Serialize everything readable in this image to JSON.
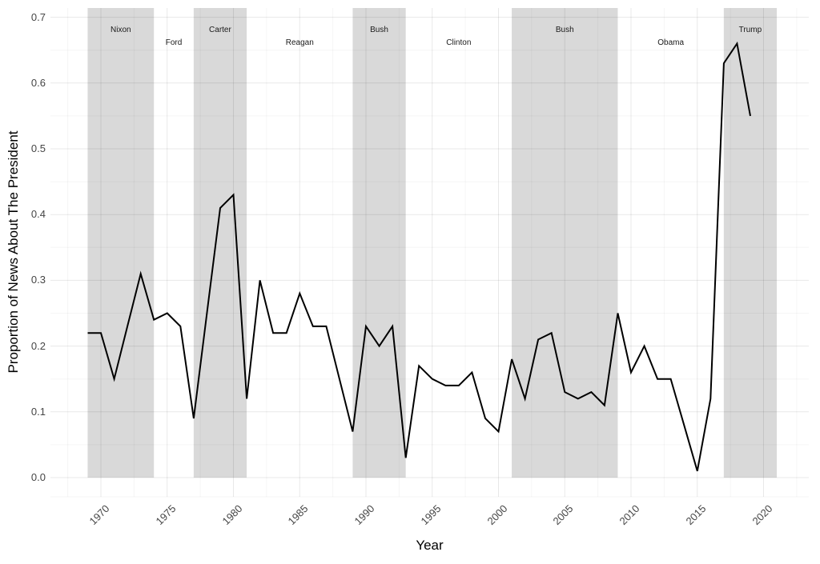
{
  "figure": {
    "xlabel": "Year",
    "ylabel": "Proportion of News About The President"
  },
  "chart_data": {
    "type": "line",
    "title": "",
    "xlabel": "Year",
    "ylabel": "Proportion of News About The President",
    "x": [
      1969,
      1970,
      1971,
      1972,
      1973,
      1974,
      1975,
      1976,
      1977,
      1978,
      1979,
      1980,
      1981,
      1982,
      1983,
      1984,
      1985,
      1986,
      1987,
      1988,
      1989,
      1990,
      1991,
      1992,
      1993,
      1994,
      1995,
      1996,
      1997,
      1998,
      1999,
      2000,
      2001,
      2002,
      2003,
      2004,
      2005,
      2006,
      2007,
      2008,
      2009,
      2010,
      2011,
      2012,
      2013,
      2014,
      2015,
      2016,
      2017,
      2018,
      2019
    ],
    "values": [
      0.22,
      0.22,
      0.15,
      0.23,
      0.31,
      0.24,
      0.25,
      0.23,
      0.09,
      0.25,
      0.41,
      0.43,
      0.12,
      0.3,
      0.22,
      0.22,
      0.28,
      0.23,
      0.23,
      0.15,
      0.07,
      0.23,
      0.2,
      0.23,
      0.03,
      0.17,
      0.15,
      0.14,
      0.14,
      0.16,
      0.09,
      0.07,
      0.18,
      0.12,
      0.21,
      0.22,
      0.13,
      0.12,
      0.13,
      0.11,
      0.25,
      0.16,
      0.2,
      0.15,
      0.15,
      0.08,
      0.01,
      0.12,
      0.63,
      0.66,
      0.55
    ],
    "x_ticks": [
      1970,
      1975,
      1980,
      1985,
      1990,
      1995,
      2000,
      2005,
      2010,
      2015,
      2020
    ],
    "y_ticks": [
      0.0,
      0.1,
      0.2,
      0.3,
      0.4,
      0.5,
      0.6,
      0.7
    ],
    "ylim": [
      0.0,
      0.7
    ],
    "grid": true,
    "legend": "none",
    "president_bands": [
      {
        "label": "Nixon",
        "start": 1969,
        "end": 1974,
        "shaded": true
      },
      {
        "label": "Ford",
        "start": 1974,
        "end": 1977,
        "shaded": false
      },
      {
        "label": "Carter",
        "start": 1977,
        "end": 1981,
        "shaded": true
      },
      {
        "label": "Reagan",
        "start": 1981,
        "end": 1989,
        "shaded": false
      },
      {
        "label": "Bush",
        "start": 1989,
        "end": 1993,
        "shaded": true
      },
      {
        "label": "Clinton",
        "start": 1993,
        "end": 2001,
        "shaded": false
      },
      {
        "label": "Bush",
        "start": 2001,
        "end": 2009,
        "shaded": true
      },
      {
        "label": "Obama",
        "start": 2009,
        "end": 2017,
        "shaded": false
      },
      {
        "label": "Trump",
        "start": 2017,
        "end": 2021,
        "shaded": true
      }
    ],
    "colors": {
      "line": "#000000",
      "band": "#d9d9d9",
      "grid_major": "rgba(0,0,0,0.09)",
      "grid_minor": "rgba(0,0,0,0.04)",
      "tick_label": "#454545",
      "axis_title": "#000000",
      "president_label": "#1a1a1a",
      "background": "#ffffff"
    }
  }
}
